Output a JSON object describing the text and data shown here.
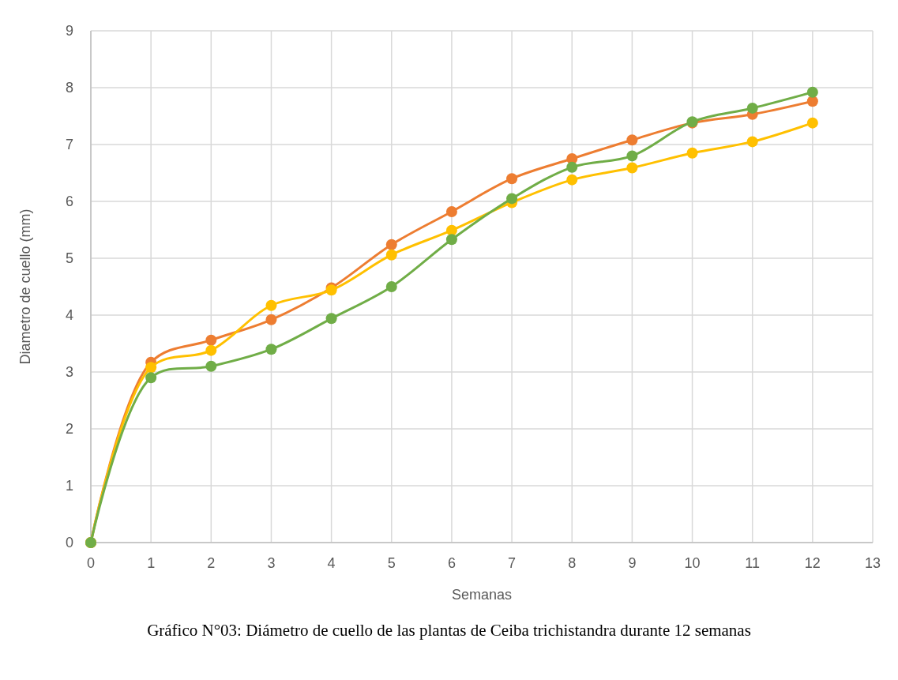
{
  "chart_data": {
    "type": "line",
    "title": "Gráfico N°03: Diámetro de cuello de las plantas de Ceiba trichistandra durante 12 semanas",
    "xlabel": "Semanas",
    "ylabel": "Diametro de cuello (mm)",
    "x": [
      0,
      1,
      2,
      3,
      4,
      5,
      6,
      7,
      8,
      9,
      10,
      11,
      12
    ],
    "series": [
      {
        "color": "#ed7d31",
        "values": [
          0,
          3.17,
          3.56,
          3.92,
          4.48,
          5.24,
          5.82,
          6.4,
          6.75,
          7.08,
          7.38,
          7.53,
          7.76
        ]
      },
      {
        "color": "#ffc000",
        "values": [
          0,
          3.08,
          3.38,
          4.17,
          4.44,
          5.06,
          5.49,
          5.98,
          6.38,
          6.59,
          6.85,
          7.05,
          7.38
        ]
      },
      {
        "color": "#70ad47",
        "values": [
          0,
          2.9,
          3.1,
          3.4,
          3.94,
          4.5,
          5.33,
          6.05,
          6.6,
          6.8,
          7.4,
          7.64,
          7.92
        ]
      }
    ],
    "xlim": [
      0,
      13
    ],
    "xticks": [
      0,
      1,
      2,
      3,
      4,
      5,
      6,
      7,
      8,
      9,
      10,
      11,
      12,
      13
    ],
    "ylim": [
      0,
      9
    ],
    "yticks": [
      0,
      1,
      2,
      3,
      4,
      5,
      6,
      7,
      8,
      9
    ],
    "grid": true,
    "marker": "circle",
    "line_style": "solid"
  }
}
